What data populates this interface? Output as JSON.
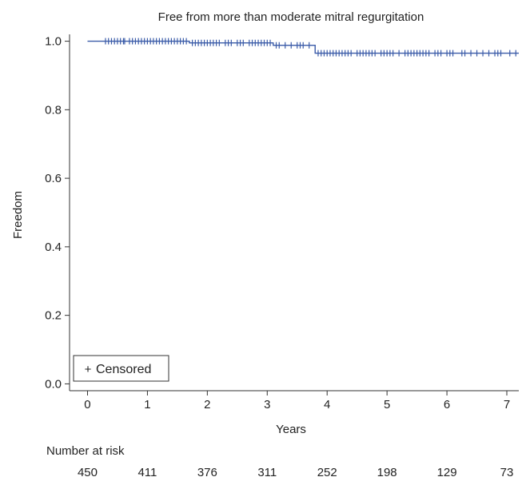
{
  "colors": {
    "curve": "#3a5ba8",
    "axis": "#333333",
    "text": "#222222"
  },
  "chart_data": {
    "type": "line",
    "chart_kind": "kaplan-meier survival curve",
    "title": "Free from more than moderate mitral regurgitation",
    "xlabel": "Years",
    "ylabel": "Freedom",
    "xlim": [
      -0.3,
      7.2
    ],
    "ylim": [
      -0.02,
      1.02
    ],
    "xticks": [
      0,
      1,
      2,
      3,
      4,
      5,
      6,
      7
    ],
    "yticks": [
      0.0,
      0.2,
      0.4,
      0.6,
      0.8,
      1.0
    ],
    "ytick_labels": [
      "0.0",
      "0.2",
      "0.4",
      "0.6",
      "0.8",
      "1.0"
    ],
    "grid": false,
    "legend": {
      "position": "bottom-left",
      "symbol": "+",
      "label": "Censored"
    },
    "series": [
      {
        "steps": [
          {
            "x": 0.0,
            "y": 1.0
          },
          {
            "x": 1.7,
            "y": 0.995
          },
          {
            "x": 3.1,
            "y": 0.988
          },
          {
            "x": 3.8,
            "y": 0.965
          },
          {
            "x": 7.2,
            "y": 0.965
          }
        ],
        "censored_x": [
          0.3,
          0.35,
          0.4,
          0.45,
          0.5,
          0.55,
          0.6,
          0.62,
          0.7,
          0.75,
          0.8,
          0.85,
          0.9,
          0.95,
          1.0,
          1.05,
          1.1,
          1.15,
          1.2,
          1.25,
          1.3,
          1.35,
          1.4,
          1.45,
          1.5,
          1.55,
          1.6,
          1.65,
          1.75,
          1.8,
          1.85,
          1.9,
          1.95,
          2.0,
          2.05,
          2.1,
          2.15,
          2.2,
          2.3,
          2.35,
          2.4,
          2.5,
          2.55,
          2.6,
          2.7,
          2.75,
          2.8,
          2.85,
          2.9,
          2.95,
          3.0,
          3.05,
          3.15,
          3.2,
          3.3,
          3.4,
          3.5,
          3.55,
          3.6,
          3.7,
          3.85,
          3.9,
          3.95,
          4.0,
          4.05,
          4.1,
          4.15,
          4.2,
          4.25,
          4.3,
          4.35,
          4.4,
          4.5,
          4.55,
          4.6,
          4.65,
          4.7,
          4.75,
          4.8,
          4.9,
          4.95,
          5.0,
          5.05,
          5.1,
          5.2,
          5.3,
          5.35,
          5.4,
          5.45,
          5.5,
          5.55,
          5.6,
          5.65,
          5.7,
          5.8,
          5.85,
          5.9,
          6.0,
          6.05,
          6.1,
          6.25,
          6.3,
          6.4,
          6.5,
          6.6,
          6.7,
          6.8,
          6.85,
          6.9,
          7.05,
          7.15
        ]
      }
    ],
    "number_at_risk": {
      "label": "Number at risk",
      "x": [
        0,
        1,
        2,
        3,
        4,
        5,
        6,
        7
      ],
      "values": [
        "450",
        "411",
        "376",
        "311",
        "252",
        "198",
        "129",
        "73"
      ]
    }
  }
}
